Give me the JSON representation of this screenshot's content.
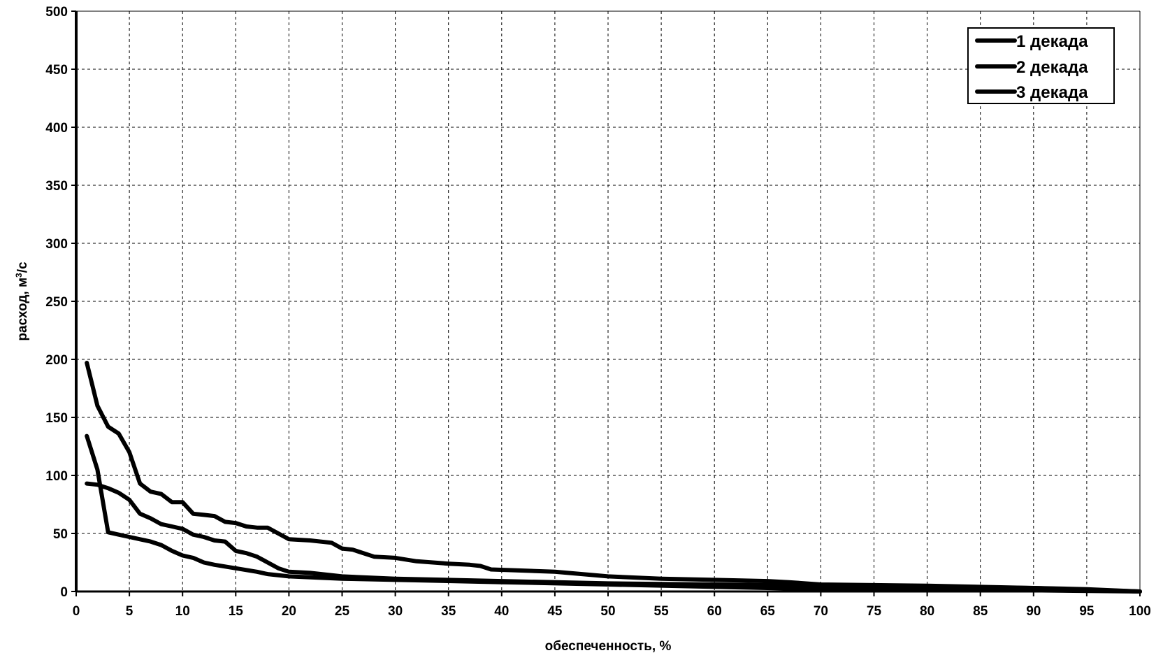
{
  "chart_data": {
    "type": "line",
    "title": "",
    "xlabel": "обеспеченность, %",
    "ylabel": "расход, м",
    "ylabel_sup": "3",
    "ylabel_tail": "/с",
    "xlim": [
      0,
      100
    ],
    "ylim": [
      0,
      500
    ],
    "xticks": [
      0,
      5,
      10,
      15,
      20,
      25,
      30,
      35,
      40,
      45,
      50,
      55,
      60,
      65,
      70,
      75,
      80,
      85,
      90,
      95,
      100
    ],
    "yticks": [
      0,
      50,
      100,
      150,
      200,
      250,
      300,
      350,
      400,
      450,
      500
    ],
    "grid": true,
    "legend_position": "top-right",
    "series_color": "#000000",
    "series": [
      {
        "name": "1 декада",
        "x": [
          1,
          2,
          3,
          4,
          5,
          6,
          7,
          8,
          9,
          10,
          11,
          12,
          13,
          14,
          15,
          16,
          17,
          18,
          19,
          20,
          22,
          24,
          25,
          26,
          28,
          30,
          32,
          35,
          37,
          38,
          39,
          45,
          50,
          55,
          60,
          65,
          67,
          70,
          80,
          90,
          95,
          100
        ],
        "y": [
          197,
          160,
          142,
          136,
          120,
          93,
          86,
          84,
          77,
          77,
          67,
          66,
          65,
          60,
          59,
          56,
          55,
          55,
          50,
          45,
          44,
          42,
          37,
          36,
          30,
          29,
          26,
          24,
          23,
          22,
          19,
          17,
          13,
          11,
          10,
          9,
          8,
          6,
          5,
          3,
          2,
          0
        ]
      },
      {
        "name": "2 декада",
        "x": [
          1,
          2,
          3,
          4,
          5,
          6,
          7,
          8,
          9,
          10,
          11,
          12,
          13,
          14,
          15,
          16,
          17,
          18,
          19,
          20,
          22,
          25,
          30,
          40,
          50,
          60,
          70,
          80,
          90,
          100
        ],
        "y": [
          93,
          92,
          89,
          85,
          79,
          67,
          63,
          58,
          56,
          54,
          49,
          47,
          44,
          43,
          35,
          33,
          30,
          25,
          20,
          17,
          16,
          13,
          11,
          9,
          7,
          6,
          5,
          4,
          3,
          0
        ]
      },
      {
        "name": "3 декада",
        "x": [
          1,
          2,
          3,
          4,
          5,
          6,
          7,
          8,
          9,
          10,
          11,
          12,
          13,
          15,
          17,
          18,
          20,
          25,
          30,
          40,
          50,
          60,
          70,
          80,
          100
        ],
        "y": [
          134,
          105,
          51,
          49,
          47,
          45,
          43,
          40,
          35,
          31,
          29,
          25,
          23,
          20,
          17,
          15,
          13,
          11,
          10,
          8,
          6,
          4,
          2,
          2,
          0
        ]
      }
    ]
  }
}
